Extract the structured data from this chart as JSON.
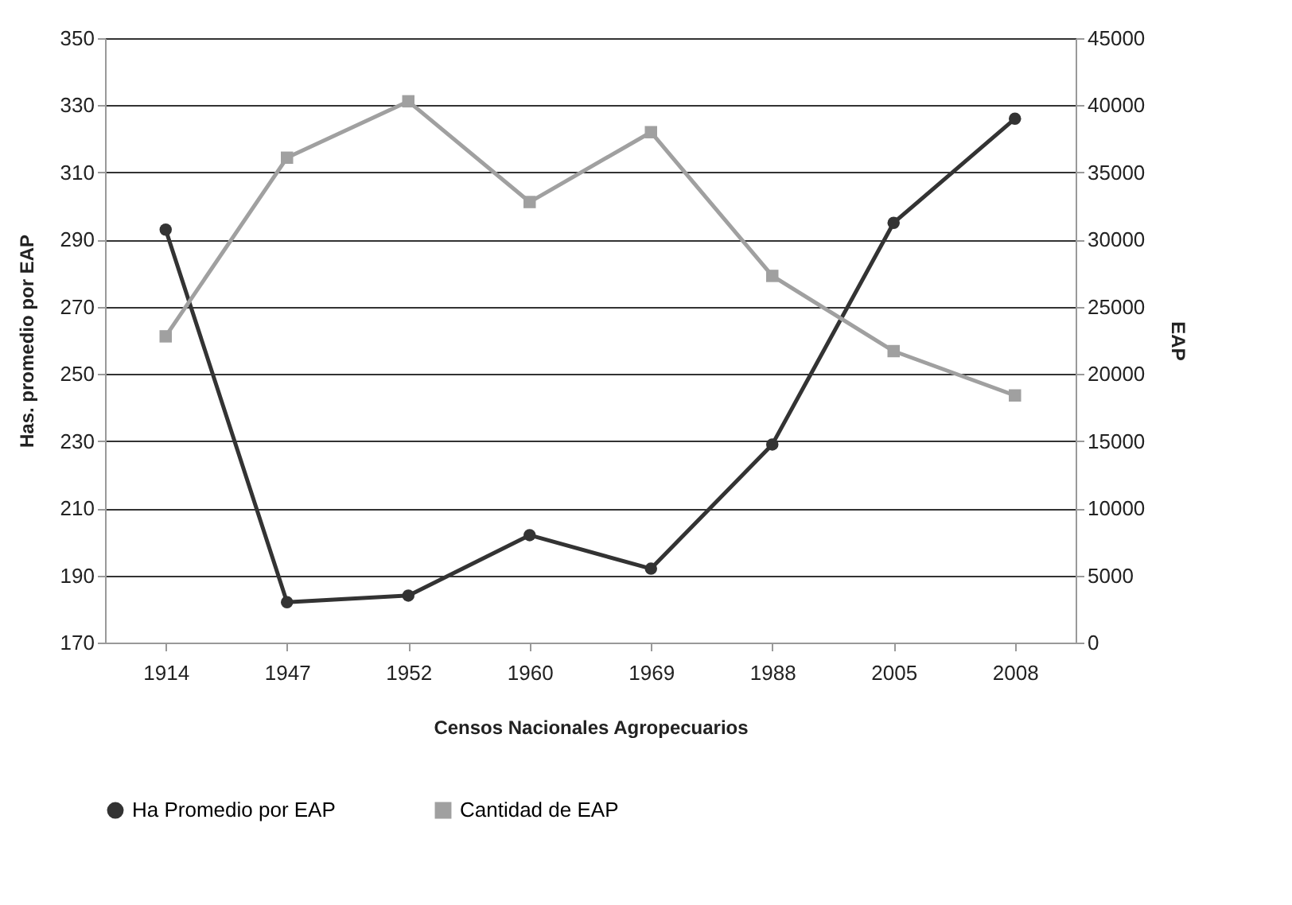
{
  "chart_data": {
    "type": "line",
    "xlabel": "Censos Nacionales Agropecuarios",
    "ylabel": "Has. promedio por EAP",
    "y2label": "EAP",
    "categories": [
      "1914",
      "1947",
      "1952",
      "1960",
      "1969",
      "1988",
      "2005",
      "2008"
    ],
    "series": [
      {
        "name": "Ha Promedio por EAP",
        "color": "#333333",
        "marker": "circle",
        "values": [
          293,
          182,
          184,
          202,
          192,
          229,
          295,
          326
        ]
      },
      {
        "name": "Cantidad de EAP",
        "color": "#a0a0a0",
        "marker": "square",
        "axis": "y2",
        "values": [
          22800,
          36100,
          40300,
          32800,
          38000,
          27300,
          21700,
          18400
        ]
      }
    ],
    "ylim": [
      170,
      350
    ],
    "yticks": [
      170,
      190,
      210,
      230,
      250,
      270,
      290,
      310,
      330,
      350
    ],
    "y2lim": [
      0,
      45000
    ],
    "y2ticks": [
      0,
      5000,
      10000,
      15000,
      20000,
      25000,
      30000,
      35000,
      40000,
      45000
    ],
    "grid": "y",
    "legend": "bottom",
    "line_style": "solid"
  }
}
